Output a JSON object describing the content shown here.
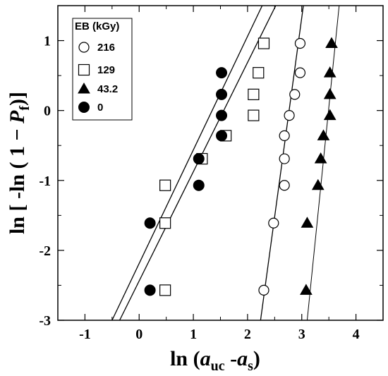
{
  "chart_data": {
    "type": "scatter",
    "xlabel": {
      "pre": "ln (",
      "v1": "a",
      "s1": "uc",
      "mid": " -",
      "v2": "a",
      "s2": "s",
      "post": ")"
    },
    "ylabel": {
      "pre": "ln [ -ln ( 1 − ",
      "v": "P",
      "s": "f",
      "post": ")]"
    },
    "xlim": [
      -1.5,
      4.5
    ],
    "ylim": [
      -3,
      1.5
    ],
    "xticks": [
      -1,
      0,
      1,
      2,
      3,
      4
    ],
    "yticks": [
      -3,
      -2,
      -1,
      0,
      1
    ],
    "legend": {
      "title": "EB (kGy)",
      "position": "top-left"
    },
    "series": [
      {
        "name": "216",
        "marker": "circle-open",
        "points": [
          [
            2.3,
            -2.57
          ],
          [
            2.48,
            -1.61
          ],
          [
            2.68,
            -1.07
          ],
          [
            2.68,
            -0.69
          ],
          [
            2.68,
            -0.36
          ],
          [
            2.77,
            -0.07
          ],
          [
            2.87,
            0.23
          ],
          [
            2.97,
            0.54
          ],
          [
            2.97,
            0.96
          ]
        ],
        "fit": [
          [
            2.24,
            -3.0
          ],
          [
            3.03,
            1.5
          ]
        ]
      },
      {
        "name": "129",
        "marker": "square-open",
        "points": [
          [
            0.48,
            -2.57
          ],
          [
            0.48,
            -1.61
          ],
          [
            0.48,
            -1.07
          ],
          [
            1.16,
            -0.69
          ],
          [
            1.6,
            -0.36
          ],
          [
            2.11,
            -0.07
          ],
          [
            2.11,
            0.23
          ],
          [
            2.2,
            0.54
          ],
          [
            2.3,
            0.96
          ]
        ],
        "fit": [
          [
            -0.36,
            -3.0
          ],
          [
            2.52,
            1.5
          ]
        ]
      },
      {
        "name": "43.2",
        "marker": "triangle-filled",
        "points": [
          [
            3.08,
            -2.57
          ],
          [
            3.1,
            -1.61
          ],
          [
            3.3,
            -1.07
          ],
          [
            3.35,
            -0.69
          ],
          [
            3.4,
            -0.36
          ],
          [
            3.52,
            -0.07
          ],
          [
            3.52,
            0.23
          ],
          [
            3.52,
            0.54
          ],
          [
            3.55,
            0.96
          ]
        ],
        "fit": [
          [
            3.1,
            -3.0
          ],
          [
            3.69,
            1.5
          ]
        ]
      },
      {
        "name": "0",
        "marker": "circle-filled",
        "points": [
          [
            0.2,
            -2.57
          ],
          [
            0.2,
            -1.61
          ],
          [
            1.1,
            -1.07
          ],
          [
            1.1,
            -0.69
          ],
          [
            1.52,
            -0.36
          ],
          [
            1.52,
            -0.07
          ],
          [
            1.52,
            0.23
          ],
          [
            1.52,
            0.54
          ]
        ],
        "fit": [
          [
            -0.5,
            -3.0
          ],
          [
            2.27,
            1.5
          ]
        ]
      }
    ]
  }
}
